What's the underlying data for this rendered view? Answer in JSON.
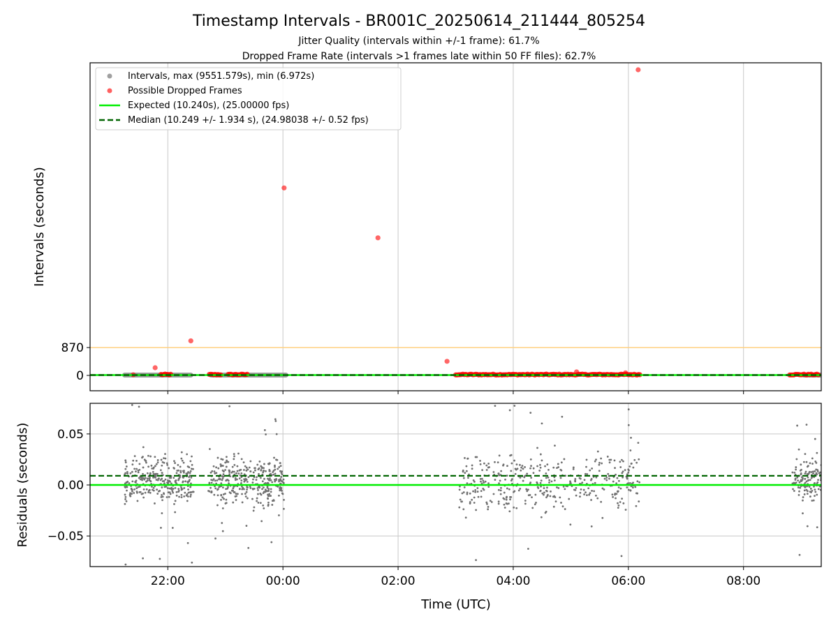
{
  "title": "Timestamp Intervals - BR001C_20250614_211444_805254",
  "subtitle_1": "Jitter Quality (intervals within +/-1 frame): 61.7%",
  "subtitle_2": "Dropped Frame Rate (intervals >1 frames late within 50 FF files): 62.7%",
  "colors": {
    "intervals": "#808080",
    "dropped": "#ff0000",
    "expected": "#00ee00",
    "median": "#006400",
    "threshold": "#ffd080",
    "grid": "#c8c8c8"
  },
  "chart_data": [
    {
      "type": "scatter",
      "panel": "intervals",
      "xlabel": "",
      "ylabel": "Intervals (seconds)",
      "x_unit": "hours since 00:00 UTC",
      "xlim": [
        -3.35,
        9.35
      ],
      "ylim": [
        -480,
        9770
      ],
      "x_ticks": [
        -2,
        0,
        2,
        4,
        6,
        8
      ],
      "y_ticks": [
        {
          "value": 0,
          "label": "0"
        },
        {
          "value": 870,
          "label": "870"
        }
      ],
      "grid": "vertical",
      "legend_position": "upper-left",
      "legend": [
        {
          "type": "marker",
          "color": "#a0a0a0",
          "label": "Intervals, max (9551.579s), min (6.972s)"
        },
        {
          "type": "marker",
          "color": "#ff6060",
          "label": "Possible Dropped Frames"
        },
        {
          "type": "line-solid",
          "color": "#00ee00",
          "label": "Expected (10.240s), (25.00000 fps)"
        },
        {
          "type": "line-dashed",
          "color": "#006400",
          "label": "Median (10.249 +/- 1.934 s), (24.98038 +/- 0.52 fps)"
        }
      ],
      "threshold_line": 870,
      "expected_line": 10.24,
      "median_line": 10.249,
      "interval_segments": [
        [
          -2.75,
          -1.6
        ],
        [
          -1.25,
          0.05
        ],
        [
          9.05,
          9.35
        ]
      ],
      "dropped_points": [
        {
          "x": -2.6,
          "y": 20
        },
        {
          "x": -2.22,
          "y": 240
        },
        {
          "x": -1.6,
          "y": 1080
        },
        {
          "x": 0.02,
          "y": 5860
        },
        {
          "x": 1.65,
          "y": 4300
        },
        {
          "x": 2.85,
          "y": 440
        },
        {
          "x": 5.1,
          "y": 110
        },
        {
          "x": 5.95,
          "y": 80
        },
        {
          "x": 6.17,
          "y": 9551.579
        }
      ],
      "dropped_clusters": [
        {
          "from": -2.12,
          "to": -1.95
        },
        {
          "from": -1.28,
          "to": -1.08
        },
        {
          "from": -0.95,
          "to": -0.62
        },
        {
          "from": 3.0,
          "to": 6.2
        },
        {
          "from": 8.8,
          "to": 9.3
        }
      ]
    },
    {
      "type": "scatter",
      "panel": "residuals",
      "xlabel": "Time (UTC)",
      "ylabel": "Residuals (seconds)",
      "x_unit": "hours since 00:00 UTC",
      "xlim": [
        -3.35,
        9.35
      ],
      "ylim": [
        -0.08,
        0.08
      ],
      "x_ticks": [
        {
          "value": -2,
          "label": "22:00"
        },
        {
          "value": 0,
          "label": "00:00"
        },
        {
          "value": 2,
          "label": "02:00"
        },
        {
          "value": 4,
          "label": "04:00"
        },
        {
          "value": 6,
          "label": "06:00"
        },
        {
          "value": 8,
          "label": "08:00"
        }
      ],
      "y_ticks": [
        {
          "value": 0.05,
          "label": "0.05"
        },
        {
          "value": 0.0,
          "label": "0.00"
        },
        {
          "value": -0.05,
          "label": "−0.05"
        }
      ],
      "grid": "both",
      "expected_line": 0.0,
      "median_line": 0.009,
      "clusters": [
        {
          "from": -2.75,
          "to": -1.55,
          "spread": 0.022,
          "center": 0.005,
          "count": 330
        },
        {
          "from": -1.3,
          "to": 0.02,
          "spread": 0.022,
          "center": 0.003,
          "count": 360
        },
        {
          "from": 3.05,
          "to": 6.22,
          "spread": 0.028,
          "center": 0.004,
          "count": 420
        },
        {
          "from": 8.85,
          "to": 9.35,
          "spread": 0.022,
          "center": 0.004,
          "count": 140
        }
      ]
    }
  ]
}
